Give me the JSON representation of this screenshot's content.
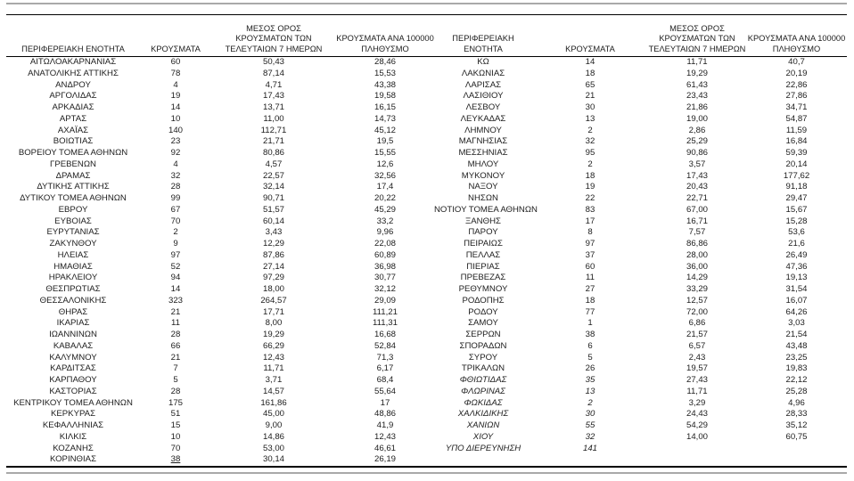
{
  "table": {
    "column_headers": [
      "ΠΕΡΙΦΕΡΕΙΑΚΗ ΕΝΟΤΗΤΑ",
      "ΚΡΟΥΣΜΑΤΑ",
      "ΜΕΣΟΣ ΟΡΟΣ\nΚΡΟΥΣΜΑΤΩΝ ΤΩΝ\nΤΕΛΕΥΤΑΙΩΝ 7 ΗΜΕΡΩΝ",
      "ΚΡΟΥΣΜΑΤΑ ΑΝΑ 100000\nΠΛΗΘΥΣΜΟ"
    ],
    "left_rows": [
      {
        "c": [
          "ΑΙΤΩΛΟΑΚΑΡΝΑΝΙΑΣ",
          "60",
          "50,43",
          "28,46"
        ]
      },
      {
        "c": [
          "ΑΝΑΤΟΛΙΚΗΣ ΑΤΤΙΚΗΣ",
          "78",
          "87,14",
          "15,53"
        ]
      },
      {
        "c": [
          "ΑΝΔΡΟΥ",
          "4",
          "4,71",
          "43,38"
        ]
      },
      {
        "c": [
          "ΑΡΓΟΛΙΔΑΣ",
          "19",
          "17,43",
          "19,58"
        ]
      },
      {
        "c": [
          "ΑΡΚΑΔΙΑΣ",
          "14",
          "13,71",
          "16,15"
        ]
      },
      {
        "c": [
          "ΑΡΤΑΣ",
          "10",
          "11,00",
          "14,73"
        ]
      },
      {
        "c": [
          "ΑΧΑΪΑΣ",
          "140",
          "112,71",
          "45,12"
        ]
      },
      {
        "c": [
          "ΒΟΙΩΤΙΑΣ",
          "23",
          "21,71",
          "19,5"
        ]
      },
      {
        "c": [
          "ΒΟΡΕΙΟΥ ΤΟΜΕΑ ΑΘΗΝΩΝ",
          "92",
          "80,86",
          "15,55"
        ]
      },
      {
        "c": [
          "ΓΡΕΒΕΝΩΝ",
          "4",
          "4,57",
          "12,6"
        ]
      },
      {
        "c": [
          "ΔΡΑΜΑΣ",
          "32",
          "22,57",
          "32,56"
        ]
      },
      {
        "c": [
          "ΔΥΤΙΚΗΣ ΑΤΤΙΚΗΣ",
          "28",
          "32,14",
          "17,4"
        ]
      },
      {
        "c": [
          "ΔΥΤΙΚΟΥ ΤΟΜΕΑ ΑΘΗΝΩΝ",
          "99",
          "90,71",
          "20,22"
        ]
      },
      {
        "c": [
          "ΕΒΡΟΥ",
          "67",
          "51,57",
          "45,29"
        ]
      },
      {
        "c": [
          "ΕΥΒΟΙΑΣ",
          "70",
          "60,14",
          "33,2"
        ]
      },
      {
        "c": [
          "ΕΥΡΥΤΑΝΙΑΣ",
          "2",
          "3,43",
          "9,96"
        ]
      },
      {
        "c": [
          "ΖΑΚΥΝΘΟΥ",
          "9",
          "12,29",
          "22,08"
        ]
      },
      {
        "c": [
          "ΗΛΕΙΑΣ",
          "97",
          "87,86",
          "60,89"
        ]
      },
      {
        "c": [
          "ΗΜΑΘΙΑΣ",
          "52",
          "27,14",
          "36,98"
        ]
      },
      {
        "c": [
          "ΗΡΑΚΛΕΙΟΥ",
          "94",
          "97,29",
          "30,77"
        ]
      },
      {
        "c": [
          "ΘΕΣΠΡΩΤΙΑΣ",
          "14",
          "18,00",
          "32,12"
        ]
      },
      {
        "c": [
          "ΘΕΣΣΑΛΟΝΙΚΗΣ",
          "323",
          "264,57",
          "29,09"
        ]
      },
      {
        "c": [
          "ΘΗΡΑΣ",
          "21",
          "17,71",
          "111,21"
        ]
      },
      {
        "c": [
          "ΙΚΑΡΙΑΣ",
          "11",
          "8,00",
          "111,31"
        ]
      },
      {
        "c": [
          "ΙΩΑΝΝΙΝΩΝ",
          "28",
          "19,29",
          "16,68"
        ]
      },
      {
        "c": [
          "ΚΑΒΑΛΑΣ",
          "66",
          "66,29",
          "52,84"
        ]
      },
      {
        "c": [
          "ΚΑΛΥΜΝΟΥ",
          "21",
          "12,43",
          "71,3"
        ]
      },
      {
        "c": [
          "ΚΑΡΔΙΤΣΑΣ",
          "7",
          "11,71",
          "6,17"
        ]
      },
      {
        "c": [
          "ΚΑΡΠΑΘΟΥ",
          "5",
          "3,71",
          "68,4"
        ]
      },
      {
        "c": [
          "ΚΑΣΤΟΡΙΑΣ",
          "28",
          "14,57",
          "55,64"
        ]
      },
      {
        "c": [
          "ΚΕΝΤΡΙΚΟΥ ΤΟΜΕΑ ΑΘΗΝΩΝ",
          "175",
          "161,86",
          "17"
        ]
      },
      {
        "c": [
          "ΚΕΡΚΥΡΑΣ",
          "51",
          "45,00",
          "48,86"
        ]
      },
      {
        "c": [
          "ΚΕΦΑΛΛΗΝΙΑΣ",
          "15",
          "9,00",
          "41,9"
        ]
      },
      {
        "c": [
          "ΚΙΛΚΙΣ",
          "10",
          "14,86",
          "12,43"
        ]
      },
      {
        "c": [
          "ΚΟΖΑΝΗΣ",
          "70",
          "53,00",
          "46,61"
        ]
      },
      {
        "c": [
          "ΚΟΡΙΝΘΙΑΣ",
          "38",
          "30,14",
          "26,19"
        ],
        "underline_cases": true
      }
    ],
    "right_rows": [
      {
        "c": [
          "ΚΩ",
          "14",
          "11,71",
          "40,7"
        ]
      },
      {
        "c": [
          "ΛΑΚΩΝΙΑΣ",
          "18",
          "19,29",
          "20,19"
        ]
      },
      {
        "c": [
          "ΛΑΡΙΣΑΣ",
          "65",
          "61,43",
          "22,86"
        ]
      },
      {
        "c": [
          "ΛΑΣΙΘΙΟΥ",
          "21",
          "23,43",
          "27,86"
        ]
      },
      {
        "c": [
          "ΛΕΣΒΟΥ",
          "30",
          "21,86",
          "34,71"
        ]
      },
      {
        "c": [
          "ΛΕΥΚΑΔΑΣ",
          "13",
          "19,00",
          "54,87"
        ]
      },
      {
        "c": [
          "ΛΗΜΝΟΥ",
          "2",
          "2,86",
          "11,59"
        ]
      },
      {
        "c": [
          "ΜΑΓΝΗΣΙΑΣ",
          "32",
          "25,29",
          "16,84"
        ]
      },
      {
        "c": [
          "ΜΕΣΣΗΝΙΑΣ",
          "95",
          "90,86",
          "59,39"
        ]
      },
      {
        "c": [
          "ΜΗΛΟΥ",
          "2",
          "3,57",
          "20,14"
        ]
      },
      {
        "c": [
          "ΜΥΚΟΝΟΥ",
          "18",
          "17,43",
          "177,62"
        ]
      },
      {
        "c": [
          "ΝΑΞΟΥ",
          "19",
          "20,43",
          "91,18"
        ]
      },
      {
        "c": [
          "ΝΗΣΩΝ",
          "22",
          "22,71",
          "29,47"
        ]
      },
      {
        "c": [
          "ΝΟΤΙΟΥ ΤΟΜΕΑ ΑΘΗΝΩΝ",
          "83",
          "67,00",
          "15,67"
        ]
      },
      {
        "c": [
          "ΞΑΝΘΗΣ",
          "17",
          "16,71",
          "15,28"
        ]
      },
      {
        "c": [
          "ΠΑΡΟΥ",
          "8",
          "7,57",
          "53,6"
        ]
      },
      {
        "c": [
          "ΠΕΙΡΑΙΩΣ",
          "97",
          "86,86",
          "21,6"
        ]
      },
      {
        "c": [
          "ΠΕΛΛΑΣ",
          "37",
          "28,00",
          "26,49"
        ]
      },
      {
        "c": [
          "ΠΙΕΡΙΑΣ",
          "60",
          "36,00",
          "47,36"
        ]
      },
      {
        "c": [
          "ΠΡΕΒΕΖΑΣ",
          "11",
          "14,29",
          "19,13"
        ]
      },
      {
        "c": [
          "ΡΕΘΥΜΝΟΥ",
          "27",
          "33,29",
          "31,54"
        ]
      },
      {
        "c": [
          "ΡΟΔΟΠΗΣ",
          "18",
          "12,57",
          "16,07"
        ]
      },
      {
        "c": [
          "ΡΟΔΟΥ",
          "77",
          "72,00",
          "64,26"
        ]
      },
      {
        "c": [
          "ΣΑΜΟΥ",
          "1",
          "6,86",
          "3,03"
        ]
      },
      {
        "c": [
          "ΣΕΡΡΩΝ",
          "38",
          "21,57",
          "21,54"
        ]
      },
      {
        "c": [
          "ΣΠΟΡΑΔΩΝ",
          "6",
          "6,57",
          "43,48"
        ]
      },
      {
        "c": [
          "ΣΥΡΟΥ",
          "5",
          "2,43",
          "23,25"
        ]
      },
      {
        "c": [
          "ΤΡΙΚΑΛΩΝ",
          "26",
          "19,57",
          "19,83"
        ]
      },
      {
        "c": [
          "ΦΘΙΩΤΙΔΑΣ",
          "35",
          "27,43",
          "22,12"
        ],
        "italic": true
      },
      {
        "c": [
          "ΦΛΩΡΙΝΑΣ",
          "13",
          "11,71",
          "25,28"
        ],
        "italic": true
      },
      {
        "c": [
          "ΦΩΚΙΔΑΣ",
          "2",
          "3,29",
          "4,96"
        ],
        "italic": true
      },
      {
        "c": [
          "ΧΑΛΚΙΔΙΚΗΣ",
          "30",
          "24,43",
          "28,33"
        ],
        "italic": true
      },
      {
        "c": [
          "ΧΑΝΙΩΝ",
          "55",
          "54,29",
          "35,12"
        ],
        "italic": true
      },
      {
        "c": [
          "ΧΙΟΥ",
          "32",
          "14,00",
          "60,75"
        ],
        "italic": true
      },
      {
        "c": [
          "ΥΠΟ ΔΙΕΡΕΥΝΗΣΗ",
          "141",
          "",
          ""
        ],
        "italic": true
      }
    ]
  }
}
